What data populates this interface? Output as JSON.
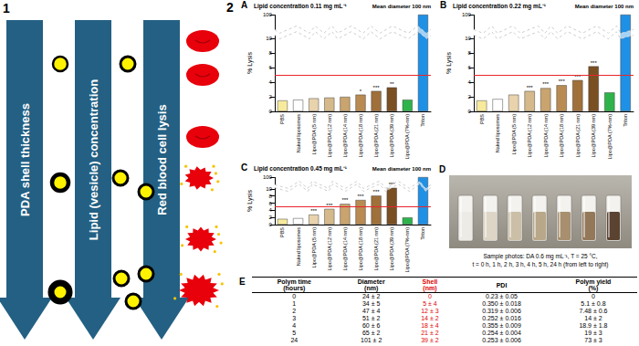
{
  "panel_1": {
    "label": "1",
    "arrows": [
      "PDA shell thickness",
      "Lipid (vesicle) concentration",
      "Red blood cell lysis"
    ]
  },
  "panel_2_label": "2",
  "chart_data": [
    {
      "type": "bar",
      "label": "A",
      "title": "Lipid concentration 0.11 mg mL⁻¹",
      "ylabel": "% Lysis",
      "categories": [
        "PBS",
        "Naked liposomes",
        "Lipo@PDA (5 nm)",
        "Lipo@PDA (12 nm)",
        "Lipo@PDA (14 nm)",
        "Lipo@PDA (18 nm)",
        "Lipo@PDA (21 nm)",
        "Lipo@PDA (39 nm)",
        "Lipo@PDA (7%-nm)",
        "Triton"
      ],
      "values": [
        1.5,
        1.6,
        1.8,
        1.9,
        2.0,
        2.3,
        2.8,
        3.3,
        1.6,
        100
      ],
      "colors": [
        "#f7ea9c",
        "#ffffff",
        "#e8d3ad",
        "#d6b98a",
        "#c9a46e",
        "#b98b52",
        "#a0703a",
        "#7a4f22",
        "#2eb34b",
        "#1e90e6"
      ],
      "significance": [
        null,
        null,
        null,
        null,
        null,
        "*",
        "***",
        "**",
        null,
        null
      ],
      "annotation": "Mean diameter 100 nm",
      "reference_line": {
        "value": 5,
        "color": "#e8262b"
      },
      "ylim": [
        0,
        100
      ],
      "yticks": [
        0,
        2,
        4,
        6,
        8,
        10,
        100
      ],
      "ybreak": [
        10.5,
        98
      ],
      "grid": false
    },
    {
      "type": "bar",
      "label": "B",
      "title": "Lipid concentration 0.22 mg mL⁻¹",
      "ylabel": "% Lysis",
      "categories": [
        "PBS",
        "Naked liposomes",
        "Lipo@PDA (5 nm)",
        "Lipo@PDA (12 nm)",
        "Lipo@PDA (14 nm)",
        "Lipo@PDA (18 nm)",
        "Lipo@PDA (21 nm)",
        "Lipo@PDA (39 nm)",
        "Lipo@PDA (7%-nm)",
        "Triton"
      ],
      "values": [
        1.5,
        1.7,
        2.3,
        2.8,
        3.2,
        3.6,
        4.3,
        6.2,
        2.6,
        100
      ],
      "colors": [
        "#f7ea9c",
        "#ffffff",
        "#e8d3ad",
        "#d6b98a",
        "#c9a46e",
        "#b98b52",
        "#a0703a",
        "#7a4f22",
        "#2eb34b",
        "#1e90e6"
      ],
      "significance": [
        null,
        null,
        null,
        "***",
        "***",
        "***",
        "***",
        "***",
        null,
        null
      ],
      "annotation": "Mean diameter 100 nm",
      "reference_line": {
        "value": 5,
        "color": "#e8262b"
      },
      "ylim": [
        0,
        100
      ],
      "yticks": [
        0,
        2,
        4,
        6,
        8,
        10,
        100
      ],
      "ybreak": [
        10.5,
        98
      ],
      "grid": false
    },
    {
      "type": "bar",
      "label": "C",
      "title": "Lipid concentration 0.45 mg mL⁻¹",
      "ylabel": "% Lysis",
      "categories": [
        "PBS",
        "Naked liposomes",
        "Lipo@PDA (5 nm)",
        "Lipo@PDA (12 nm)",
        "Lipo@PDA (14 nm)",
        "Lipo@PDA (18 nm)",
        "Lipo@PDA (21 nm)",
        "Lipo@PDA (39 nm)",
        "Lipo@PDA (7%-nm)",
        "Triton"
      ],
      "values": [
        1.6,
        1.8,
        2.8,
        4.4,
        5.8,
        6.9,
        8.1,
        10.3,
        2.0,
        100
      ],
      "colors": [
        "#f7ea9c",
        "#ffffff",
        "#e8d3ad",
        "#d6b98a",
        "#c9a46e",
        "#b98b52",
        "#a0703a",
        "#7a4f22",
        "#2eb34b",
        "#1e90e6"
      ],
      "significance": [
        null,
        null,
        "***",
        "***",
        "***",
        "***",
        "***",
        "***",
        null,
        null
      ],
      "annotation": "Mean diameter 100 nm",
      "reference_line": {
        "value": 5,
        "color": "#e8262b"
      },
      "ylim": [
        0,
        100
      ],
      "yticks": [
        0,
        2,
        4,
        6,
        8,
        10,
        100
      ],
      "ybreak": [
        10.5,
        98
      ],
      "grid": false
    }
  ],
  "photo": {
    "label": "D",
    "caption": [
      "Sample photos: DA 0.6 mg mL⁻¹, T = 25 °C,",
      "t = 0 h, 1 h, 2 h, 3 h, 4 h, 5 h, 24 h (from left to right)"
    ]
  },
  "table": {
    "label": "E",
    "columns": [
      {
        "header": "Polym time\n(hours)"
      },
      {
        "header": "Diameter\n(nm)"
      },
      {
        "header": "Shell\n(nm)",
        "color": "#e00000"
      },
      {
        "header": "PDI"
      },
      {
        "header": "Polym yield\n(%)"
      }
    ],
    "rows": [
      [
        "0",
        "24 ± 2",
        "0",
        "0.23 ± 0.05",
        "0"
      ],
      [
        "1",
        "34 ± 5",
        "5 ± 4",
        "0.350 ± 0.018",
        "5.1 ± 0.8"
      ],
      [
        "2",
        "47 ± 4",
        "12 ± 3",
        "0.319 ± 0.006",
        "7.48 ± 0.6"
      ],
      [
        "3",
        "51 ± 2",
        "14 ± 2",
        "0.252 ± 0.016",
        "14 ± 2"
      ],
      [
        "4",
        "60 ± 6",
        "18 ± 4",
        "0.355 ± 0.009",
        "18.9 ± 1.8"
      ],
      [
        "5",
        "65 ± 2",
        "21 ± 2",
        "0.254 ± 0.004",
        "19 ± 3"
      ],
      [
        "24",
        "101 ± 2",
        "39 ± 2",
        "0.253 ± 0.006",
        "73 ± 3"
      ]
    ]
  }
}
